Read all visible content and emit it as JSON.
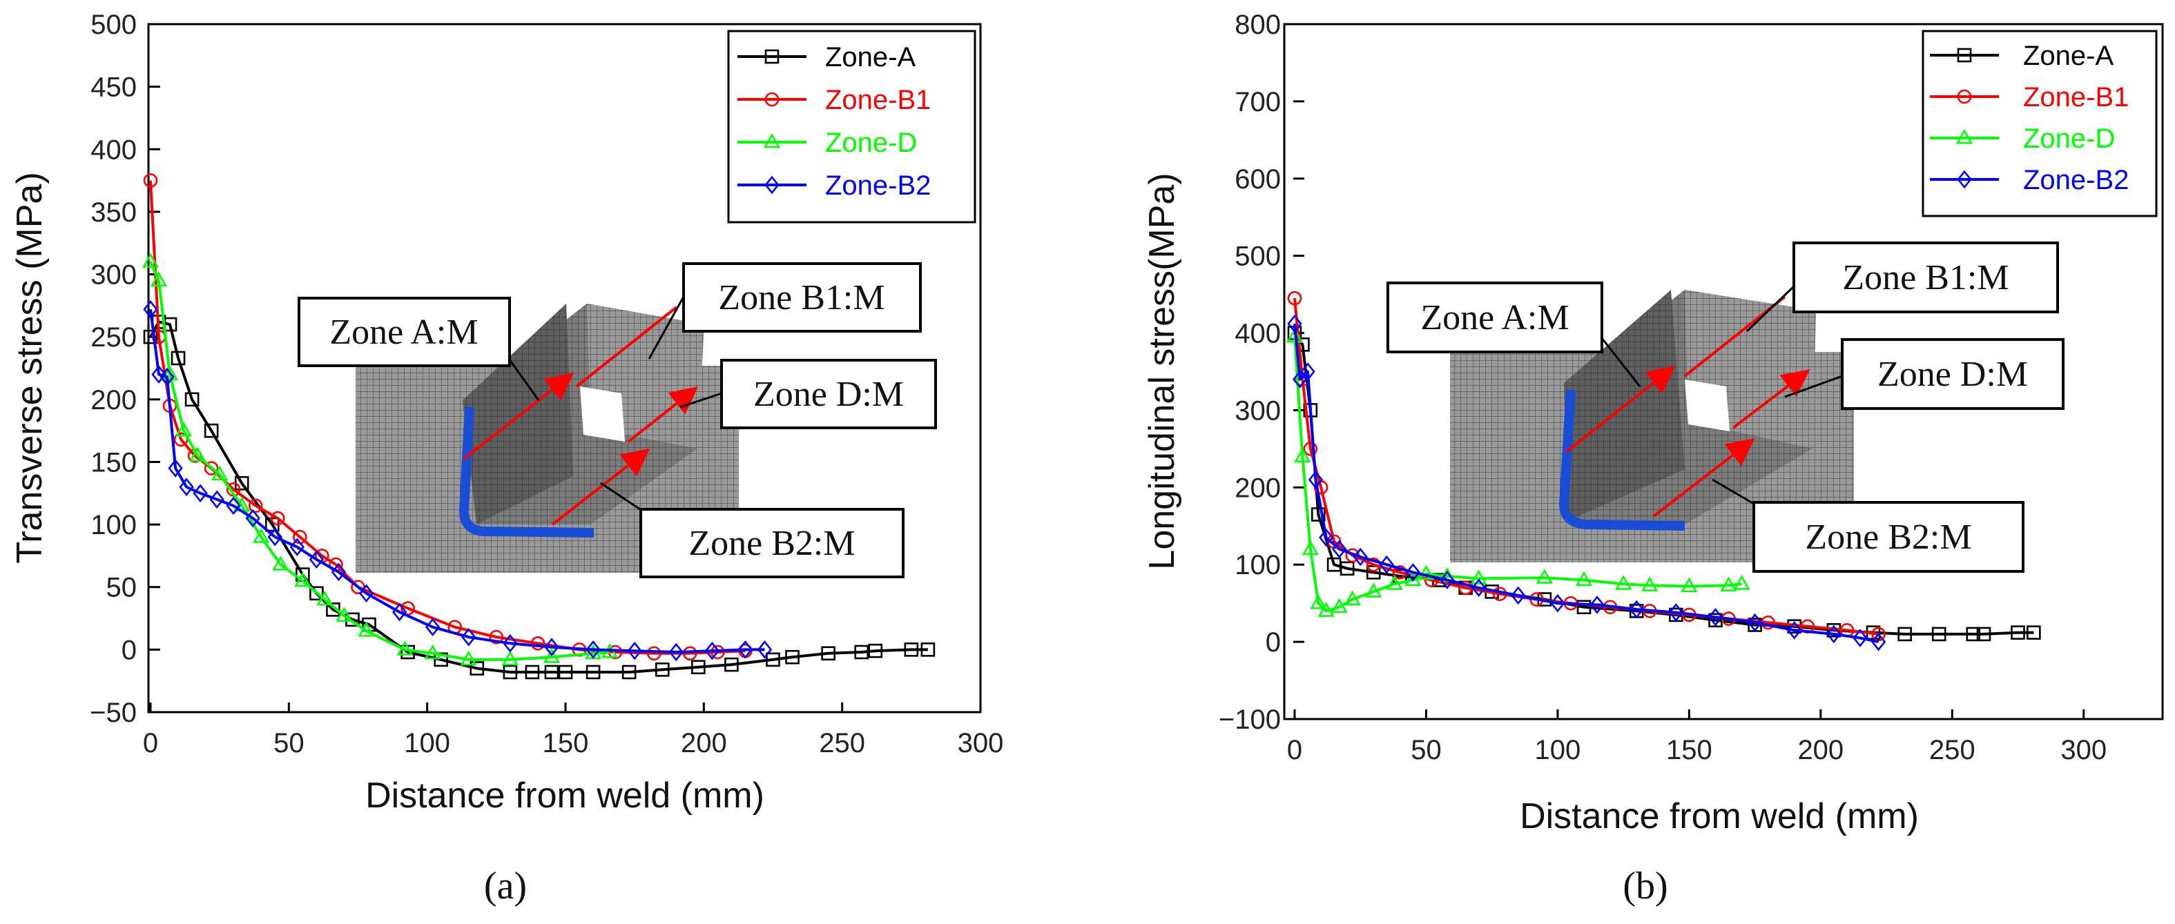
{
  "chart_data": [
    {
      "type": "line",
      "caption": "(a)",
      "xlabel": "Distance from weld (mm)",
      "ylabel": "Transverse stress (MPa)",
      "xlim": [
        0,
        300
      ],
      "ylim": [
        -50,
        500
      ],
      "xticks": [
        0,
        50,
        100,
        150,
        200,
        250,
        300
      ],
      "yticks": [
        -50,
        0,
        50,
        100,
        150,
        200,
        250,
        300,
        350,
        400,
        450,
        500
      ],
      "legend_position": "top-right",
      "inset_labels": [
        "Zone A:M",
        "Zone B1:M",
        "Zone D:M",
        "Zone B2:M"
      ],
      "series": [
        {
          "name": "Zone-A",
          "color": "#000000",
          "marker": "square",
          "x": [
            0,
            3,
            7,
            10,
            15,
            22,
            33,
            44,
            55,
            60,
            66,
            73,
            79,
            93,
            105,
            118,
            130,
            138,
            145,
            150,
            160,
            173,
            185,
            198,
            210,
            225,
            232,
            245,
            257,
            262,
            275,
            281
          ],
          "y": [
            250,
            262,
            260,
            233,
            200,
            175,
            133,
            100,
            60,
            45,
            32,
            24,
            20,
            -2,
            -8,
            -15,
            -18,
            -18,
            -18,
            -18,
            -18,
            -18,
            -16,
            -14,
            -12,
            -8,
            -6,
            -3,
            -2,
            -1,
            0,
            0
          ]
        },
        {
          "name": "Zone-B1",
          "color": "#ff0000",
          "marker": "circle",
          "x": [
            0,
            3,
            7,
            11,
            16,
            22,
            30,
            38,
            46,
            54,
            62,
            67,
            75,
            93,
            110,
            125,
            140,
            155,
            168,
            182,
            195,
            205,
            215
          ],
          "y": [
            375,
            250,
            195,
            168,
            155,
            145,
            128,
            115,
            105,
            90,
            75,
            68,
            50,
            33,
            18,
            10,
            5,
            0,
            -2,
            -3,
            -3,
            -2,
            -1
          ]
        },
        {
          "name": "Zone-D",
          "color": "#00ff00",
          "marker": "triangle",
          "x": [
            0,
            3,
            7,
            12,
            17,
            25,
            33,
            40,
            47,
            55,
            63,
            70,
            78,
            92,
            102,
            115,
            130,
            145,
            160,
            166
          ],
          "y": [
            310,
            295,
            220,
            175,
            155,
            140,
            115,
            90,
            68,
            55,
            40,
            27,
            15,
            0,
            -3,
            -8,
            -8,
            -6,
            -3,
            -2
          ]
        },
        {
          "name": "Zone-B2",
          "color": "#0000ff",
          "marker": "diamond",
          "x": [
            0,
            3,
            6,
            9,
            13,
            18,
            24,
            30,
            37,
            45,
            53,
            60,
            68,
            78,
            90,
            102,
            115,
            130,
            145,
            160,
            175,
            190,
            203,
            215,
            222
          ],
          "y": [
            272,
            220,
            218,
            145,
            130,
            125,
            120,
            115,
            105,
            90,
            82,
            72,
            62,
            45,
            30,
            18,
            10,
            5,
            2,
            0,
            -1,
            -2,
            -1,
            0,
            0
          ]
        }
      ]
    },
    {
      "type": "line",
      "caption": "(b)",
      "xlabel": "Distance from weld (mm)",
      "ylabel": "Longitudinal stress(MPa)",
      "xlim": [
        0,
        330
      ],
      "ylim": [
        -100,
        800
      ],
      "xticks": [
        0,
        50,
        100,
        150,
        200,
        250,
        300
      ],
      "yticks": [
        -100,
        0,
        100,
        200,
        300,
        400,
        500,
        600,
        700,
        800
      ],
      "legend_position": "top-right",
      "inset_labels": [
        "Zone A:M",
        "Zone B1:M",
        "Zone D:M",
        "Zone B2:M"
      ],
      "series": [
        {
          "name": "Zone-A",
          "color": "#000000",
          "marker": "square",
          "x": [
            0,
            3,
            6,
            9,
            15,
            20,
            30,
            40,
            55,
            65,
            75,
            95,
            110,
            130,
            145,
            160,
            175,
            190,
            205,
            220,
            232,
            245,
            258,
            262,
            275,
            281
          ],
          "y": [
            400,
            385,
            300,
            165,
            100,
            95,
            90,
            85,
            80,
            70,
            65,
            55,
            45,
            40,
            35,
            28,
            22,
            20,
            15,
            12,
            10,
            10,
            10,
            10,
            12,
            12
          ]
        },
        {
          "name": "Zone-B1",
          "color": "#ff0000",
          "marker": "circle",
          "x": [
            0,
            3,
            6,
            10,
            15,
            22,
            30,
            40,
            52,
            65,
            78,
            92,
            105,
            120,
            135,
            150,
            165,
            180,
            195,
            210,
            222
          ],
          "y": [
            445,
            340,
            250,
            200,
            130,
            112,
            100,
            90,
            80,
            70,
            62,
            55,
            50,
            45,
            40,
            35,
            30,
            25,
            20,
            15,
            10
          ]
        },
        {
          "name": "Zone-D",
          "color": "#00ff00",
          "marker": "triangle",
          "x": [
            0,
            3,
            6,
            9,
            12,
            17,
            22,
            30,
            38,
            45,
            50,
            58,
            70,
            95,
            110,
            125,
            135,
            150,
            165,
            170
          ],
          "y": [
            395,
            240,
            120,
            50,
            40,
            45,
            55,
            65,
            75,
            80,
            88,
            85,
            82,
            83,
            80,
            75,
            73,
            72,
            73,
            75
          ]
        },
        {
          "name": "Zone-B2",
          "color": "#0000ff",
          "marker": "diamond",
          "x": [
            0,
            2,
            5,
            8,
            12,
            17,
            25,
            35,
            45,
            58,
            70,
            85,
            100,
            115,
            130,
            145,
            160,
            175,
            190,
            205,
            215,
            222
          ],
          "y": [
            412,
            340,
            350,
            210,
            135,
            120,
            110,
            100,
            90,
            80,
            70,
            60,
            50,
            48,
            42,
            38,
            32,
            25,
            15,
            10,
            5,
            0
          ]
        }
      ]
    }
  ]
}
